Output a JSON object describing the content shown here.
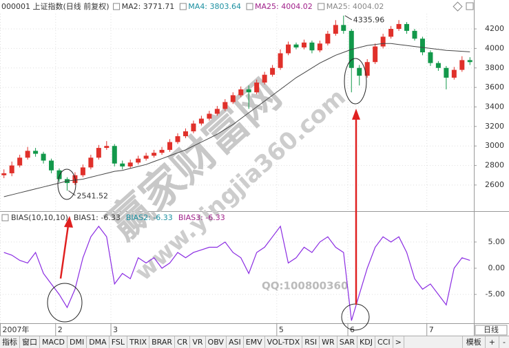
{
  "chart_data": [
    {
      "type": "candlestick",
      "title": "000001 上证指数(日线 前复权)",
      "legend": [
        {
          "text": "MA2: 3771.71",
          "color": "#333333"
        },
        {
          "text": "MA4: 3803.64",
          "color": "#1a8fa0"
        },
        {
          "text": "MA25: 4004.02",
          "color": "#a0208a"
        },
        {
          "text": "MA25: 4004.02",
          "color": "#888888"
        }
      ],
      "open": [
        2700,
        2720,
        2800,
        2880,
        2950,
        2920,
        2850,
        2750,
        2660,
        2620,
        2700,
        2780,
        2880,
        2980,
        3000,
        2820,
        2790,
        2830,
        2870,
        2900,
        2930,
        2960,
        3040,
        3100,
        3150,
        3230,
        3280,
        3330,
        3380,
        3450,
        3520,
        3580,
        3550,
        3650,
        3730,
        3800,
        3950,
        4040,
        4010,
        4060,
        3980,
        4050,
        4150,
        4240,
        4180,
        3800,
        3720,
        3860,
        4020,
        4120,
        4200,
        4250,
        4180,
        4100,
        3960,
        3850,
        3800,
        3700,
        3780,
        3880
      ],
      "high": [
        2760,
        2840,
        2910,
        2990,
        2980,
        2940,
        2870,
        2770,
        2680,
        2730,
        2810,
        2910,
        3010,
        3050,
        3020,
        2850,
        2860,
        2900,
        2930,
        2960,
        2990,
        3070,
        3130,
        3180,
        3260,
        3310,
        3360,
        3410,
        3480,
        3550,
        3610,
        3620,
        3680,
        3760,
        3830,
        3990,
        4070,
        4060,
        4090,
        4080,
        4080,
        4180,
        4290,
        4335.96,
        4200,
        3830,
        3890,
        4050,
        4150,
        4230,
        4290,
        4270,
        4200,
        4120,
        3980,
        3870,
        3820,
        3810,
        3920,
        3910
      ],
      "low": [
        2670,
        2690,
        2780,
        2860,
        2890,
        2820,
        2720,
        2630,
        2541.52,
        2600,
        2680,
        2760,
        2860,
        2960,
        2790,
        2760,
        2770,
        2810,
        2850,
        2880,
        2910,
        2940,
        3020,
        3080,
        3130,
        3210,
        3260,
        3310,
        3360,
        3430,
        3500,
        3380,
        3530,
        3630,
        3710,
        3780,
        3930,
        3990,
        3990,
        3950,
        3960,
        4030,
        4130,
        4150,
        3550,
        3620,
        3700,
        3840,
        4000,
        4100,
        4180,
        4150,
        4080,
        3930,
        3820,
        3770,
        3580,
        3680,
        3760,
        3830
      ],
      "close": [
        2720,
        2800,
        2880,
        2950,
        2920,
        2850,
        2750,
        2660,
        2620,
        2700,
        2780,
        2880,
        2980,
        3000,
        2820,
        2790,
        2830,
        2870,
        2900,
        2930,
        2960,
        3040,
        3100,
        3150,
        3230,
        3280,
        3330,
        3380,
        3450,
        3520,
        3580,
        3550,
        3650,
        3730,
        3800,
        3950,
        4040,
        4010,
        4060,
        3980,
        4050,
        4150,
        4240,
        4180,
        3800,
        3720,
        3860,
        4020,
        4120,
        4200,
        4250,
        4180,
        4100,
        3960,
        3850,
        3800,
        3700,
        3780,
        3880,
        3860
      ],
      "up_color": "#e0302a",
      "down_color": "#12984a",
      "series": [
        {
          "color": "#444444",
          "values": [
            2480,
            2500,
            2520,
            2540,
            2560,
            2580,
            2600,
            2620,
            2640,
            2650,
            2660,
            2680,
            2700,
            2720,
            2740,
            2750,
            2770,
            2790,
            2810,
            2840,
            2870,
            2900,
            2930,
            2960,
            3000,
            3040,
            3080,
            3120,
            3170,
            3220,
            3280,
            3340,
            3400,
            3460,
            3520,
            3580,
            3640,
            3700,
            3750,
            3800,
            3850,
            3890,
            3930,
            3960,
            3990,
            4010,
            4030,
            4040,
            4050,
            4050,
            4040,
            4030,
            4020,
            4010,
            4000,
            3990,
            3980,
            3975,
            3970,
            3965
          ]
        }
      ],
      "annotations": [
        "2541.52",
        "4335.96"
      ],
      "ylim": [
        2346,
        4461
      ],
      "yticks": [
        2600,
        2800,
        3000,
        3200,
        3400,
        3600,
        3800,
        4000,
        4200
      ],
      "grid": true
    },
    {
      "type": "line",
      "legend": [
        {
          "text": "BIAS(10,10,10)",
          "color": "#333333"
        },
        {
          "text": "BIAS1: -6.33",
          "color": "#333333"
        },
        {
          "text": "BIAS2: -6.33",
          "color": "#1a8fa0"
        },
        {
          "text": "BIAS3: -6.33",
          "color": "#a0208a"
        }
      ],
      "categories": [
        "2007年",
        null,
        null,
        null,
        null,
        null,
        null,
        "2",
        null,
        null,
        null,
        null,
        null,
        null,
        "3",
        null,
        null,
        null,
        null,
        null,
        null,
        null,
        null,
        null,
        null,
        null,
        null,
        null,
        null,
        null,
        null,
        null,
        null,
        null,
        null,
        "5",
        null,
        null,
        null,
        null,
        null,
        null,
        null,
        null,
        "6",
        null,
        null,
        null,
        null,
        null,
        null,
        null,
        null,
        null,
        "7",
        null,
        null,
        null,
        null,
        null
      ],
      "series": [
        {
          "color": "#8a2be2",
          "values": [
            3,
            2.5,
            1.5,
            1,
            3,
            -1,
            -3,
            -5,
            -7.5,
            -4,
            2,
            6,
            8,
            6,
            -3,
            -1,
            -2,
            2,
            1,
            2,
            0,
            1,
            3,
            2,
            3,
            3.5,
            4,
            4,
            5,
            3,
            2,
            -1,
            3,
            4,
            6,
            8,
            1,
            2,
            4,
            3,
            5,
            6,
            4,
            3,
            -10,
            -5,
            0,
            4,
            6,
            5,
            6,
            3,
            -2,
            -4,
            -3,
            -5,
            -7,
            0,
            2,
            1.5
          ]
        }
      ],
      "ylim": [
        -10.5,
        10.5
      ],
      "yticks": [
        {
          "value": 5,
          "label": "5.00"
        },
        {
          "value": 0,
          "label": "0.00"
        },
        {
          "value": -5,
          "label": "-5.00"
        }
      ],
      "grid": true
    }
  ],
  "watermarks": [
    "赢家财富网",
    "www.yingjia360.com",
    "QQ:100800360"
  ],
  "period": "日线",
  "tabs": [
    "指标",
    "窗口",
    "MACD",
    "DMI",
    "DMA",
    "FSL",
    "TRIX",
    "BRAR",
    "CR",
    "VR",
    "OBV",
    "ASI",
    "EMV",
    "VOL-TDX",
    "RSI",
    "WR",
    "SAR",
    "KDJ",
    "CCI",
    ">"
  ],
  "right_tabs": [
    "模板",
    "+",
    "-"
  ]
}
